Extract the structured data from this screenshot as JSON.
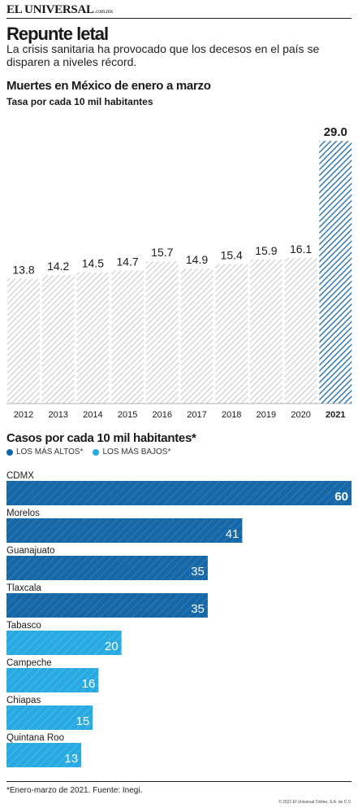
{
  "masthead": {
    "name": "EL UNIVERSAL",
    "domain": ".com.mx"
  },
  "headline": "Repunte letal",
  "deck": "La crisis sanitaria ha provocado que los decesos en el país se disparen a niveles récord.",
  "colors": {
    "dark_blue": "#1567a8",
    "light_blue": "#27aae1",
    "gray_hatch": "#c8c8c8"
  },
  "chart_data": [
    {
      "type": "bar",
      "title": "Muertes en México de enero a marzo",
      "subtitle": "Tasa por cada 10 mil habitantes",
      "categories": [
        "2012",
        "2013",
        "2014",
        "2015",
        "2016",
        "2017",
        "2018",
        "2019",
        "2020",
        "2021"
      ],
      "values": [
        13.8,
        14.2,
        14.5,
        14.7,
        15.7,
        14.9,
        15.4,
        15.9,
        16.1,
        29.0
      ],
      "labels": [
        "13.8",
        "14.2",
        "14.5",
        "14.7",
        "15.7",
        "14.9",
        "15.4",
        "15.9",
        "16.1",
        "29.0"
      ],
      "highlight": "2021",
      "ylim": [
        0,
        30
      ]
    },
    {
      "type": "bar",
      "orientation": "horizontal",
      "title": "Casos por cada 10 mil habitantes*",
      "legend": [
        {
          "label": "LOS MÁS ALTOS*",
          "color": "#1567a8"
        },
        {
          "label": "LOS MÁS BAJOS*",
          "color": "#27aae1"
        }
      ],
      "categories": [
        "CDMX",
        "Morelos",
        "Guanajuato",
        "Tlaxcala",
        "Tabasco",
        "Campeche",
        "Chiapas",
        "Quintana Roo"
      ],
      "values": [
        60,
        41,
        35,
        35,
        20,
        16,
        15,
        13
      ],
      "groups": [
        "alto",
        "alto",
        "alto",
        "alto",
        "bajo",
        "bajo",
        "bajo",
        "bajo"
      ],
      "xlim": [
        0,
        60
      ]
    }
  ],
  "footnote": "*Enero-marzo de 2021. Fuente: Inegi.",
  "copyright": "© 2021 El Universal Online, S.A. de C.V."
}
